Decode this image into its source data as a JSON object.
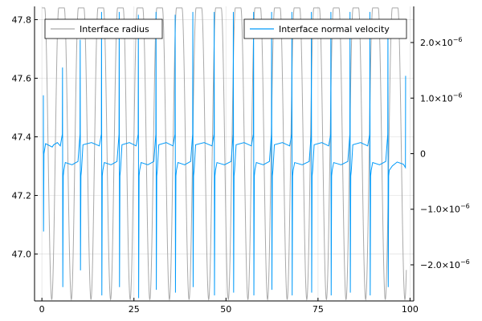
{
  "chart_data": {
    "type": "line",
    "grid": true,
    "x_axis": {
      "range": [
        -2,
        101
      ],
      "ticks": [
        0,
        25,
        50,
        75,
        100
      ],
      "tick_labels": [
        "0",
        "25",
        "50",
        "75",
        "100"
      ]
    },
    "y_left": {
      "range": [
        46.84,
        47.845
      ],
      "ticks": [
        47.0,
        47.2,
        47.4,
        47.6,
        47.8
      ],
      "tick_labels": [
        "47.0",
        "47.2",
        "47.4",
        "47.6",
        "47.8"
      ]
    },
    "y_right": {
      "range": [
        -2.65e-06,
        2.65e-06
      ],
      "ticks": [
        -2e-06,
        -1e-06,
        0,
        1e-06,
        2e-06
      ],
      "tick_labels": [
        "−2.0×10",
        "−1.0×10",
        "0",
        "1.0×10",
        "2.0×10"
      ],
      "tick_exponents": [
        "−6",
        "−6",
        "",
        "−6",
        "−6"
      ]
    },
    "series": [
      {
        "name": "Interface radius",
        "axis": "left",
        "color": "#a9a9a9",
        "x_range": [
          0,
          99
        ],
        "period": 5.33,
        "peaks": 19,
        "max": 47.84,
        "min": 46.845,
        "plateau_width": 1.5
      },
      {
        "name": "Interface normal velocity",
        "axis": "right",
        "color": "#009af9",
        "x_range": [
          0.4,
          98.8
        ],
        "start_spike": {
          "x": 0.4,
          "high": 1.05e-06,
          "low": -1.4e-06
        },
        "end_spike": {
          "x": 98.8,
          "high": 1.4e-06
        },
        "spike_times": [
          5.6,
          10.4,
          16.2,
          21.0,
          26.2,
          31.0,
          36.2,
          41.0,
          46.8,
          52.0,
          57.5,
          62.4,
          67.9,
          73.2,
          78.5,
          83.7,
          89.1,
          94.0
        ],
        "spike_high": [
          1.55e-06,
          2.05e-06,
          2.55e-06,
          2.55e-06,
          2.5e-06,
          2.55e-06,
          2.5e-06,
          2.55e-06,
          2.55e-06,
          2.55e-06,
          2.55e-06,
          2.55e-06,
          2.55e-06,
          2.55e-06,
          2.55e-06,
          2.55e-06,
          2.55e-06,
          2.25e-06
        ],
        "spike_low": [
          -2.4e-06,
          -2.1e-06,
          -2.55e-06,
          -2.4e-06,
          -2.6e-06,
          -2.45e-06,
          -2.5e-06,
          -2.4e-06,
          -2.55e-06,
          -2.5e-06,
          -2.55e-06,
          -2.45e-06,
          -2.55e-06,
          -2.5e-06,
          -2.55e-06,
          -2.5e-06,
          -2.55e-06,
          -2.4e-06
        ],
        "baseline_max": 2e-07,
        "baseline_min": -3e-07
      }
    ],
    "legends": [
      {
        "series": "Interface radius",
        "placement": "top-left"
      },
      {
        "series": "Interface normal velocity",
        "placement": "top-right"
      }
    ]
  }
}
